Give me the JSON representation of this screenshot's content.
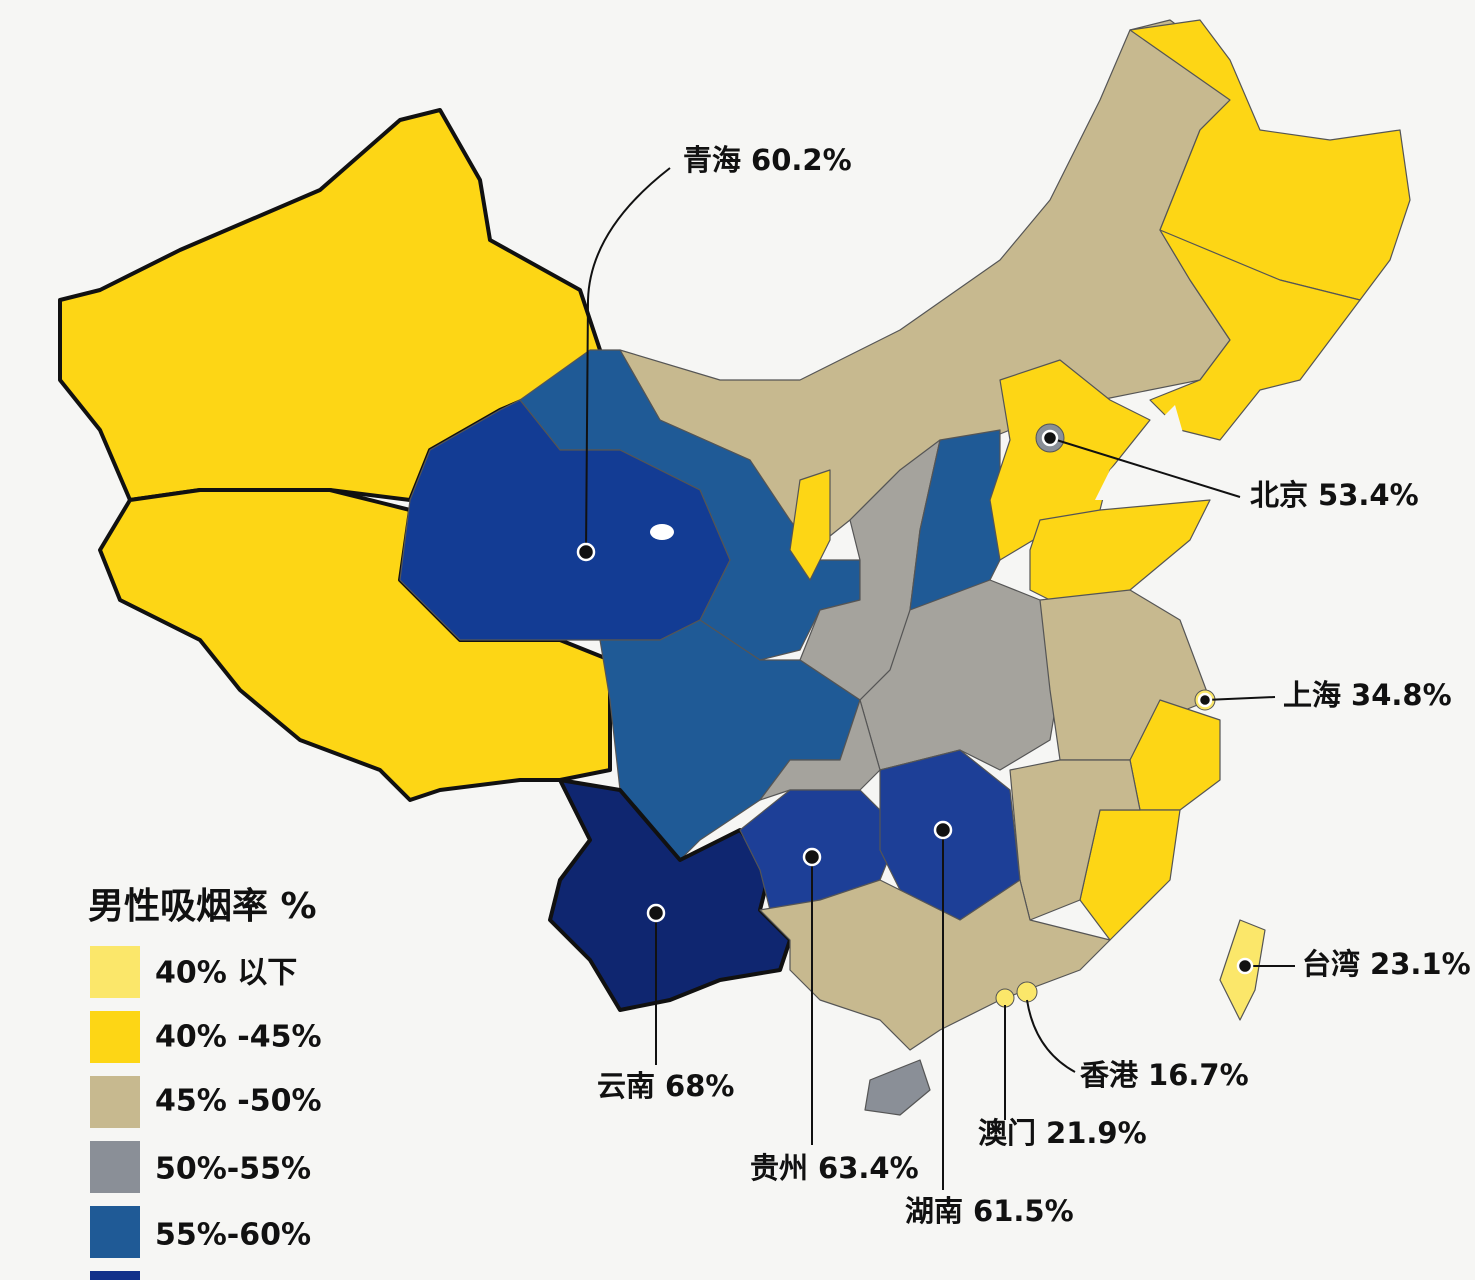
{
  "annotations": [
    {
      "name": "青海",
      "value": "60.2%"
    },
    {
      "name": "北京",
      "value": "53.4%"
    },
    {
      "name": "上海",
      "value": "34.8%"
    },
    {
      "name": "台湾",
      "value": "23.1%"
    },
    {
      "name": "香港",
      "value": "16.7%"
    },
    {
      "name": "澳门",
      "value": "21.9%"
    },
    {
      "name": "湖南",
      "value": "61.5%"
    },
    {
      "name": "贵州",
      "value": "63.4%"
    },
    {
      "name": "云南",
      "value": "68%"
    }
  ],
  "legend": {
    "title": "男性吸烟率 %",
    "items": [
      "40% 以下",
      "40% -45%",
      "45% -50%",
      "50%-55%",
      "55%-60%"
    ]
  }
}
